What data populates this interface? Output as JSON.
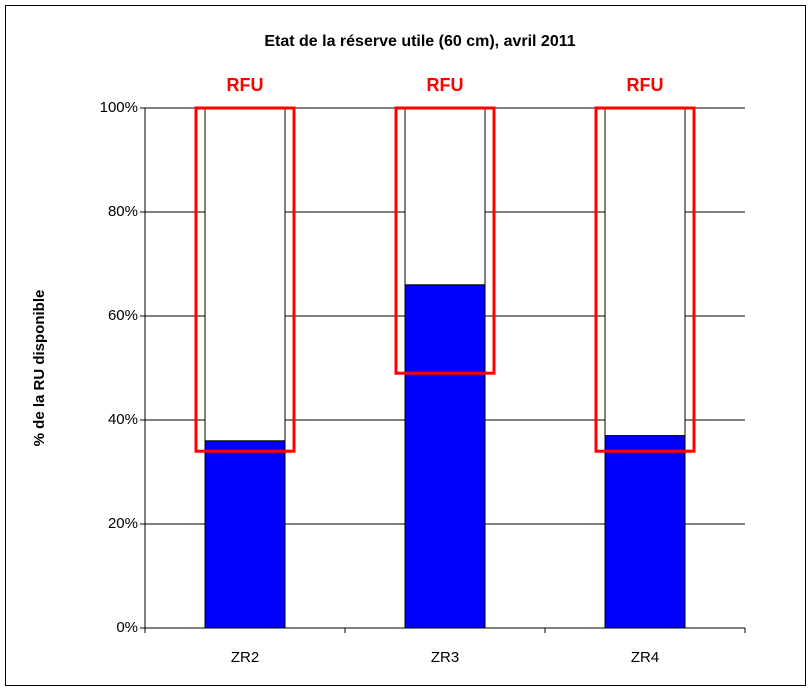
{
  "chart_data": {
    "type": "stacked_bar",
    "title": "Etat de la réserve utile (60 cm), avril 2011",
    "ylabel": "% de la RU disponible",
    "categories": [
      "ZR2",
      "ZR3",
      "ZR4"
    ],
    "series": [
      {
        "color": "#0000ff",
        "values": [
          36,
          66,
          37
        ]
      },
      {
        "color": "#ffffff",
        "values": [
          64,
          34,
          63
        ]
      }
    ],
    "ranges": {
      "color": "#ff0000",
      "labels": [
        "RFU",
        "RFU",
        "RFU"
      ],
      "low": [
        34,
        49,
        34
      ],
      "high": [
        100,
        100,
        100
      ]
    },
    "ylim": [
      0,
      100
    ],
    "yticks": [
      {
        "value": 0,
        "label": "0%"
      },
      {
        "value": 20,
        "label": "20%"
      },
      {
        "value": 40,
        "label": "40%"
      },
      {
        "value": 60,
        "label": "60%"
      },
      {
        "value": 80,
        "label": "80%"
      },
      {
        "value": 100,
        "label": "100%"
      }
    ],
    "grid": true
  }
}
